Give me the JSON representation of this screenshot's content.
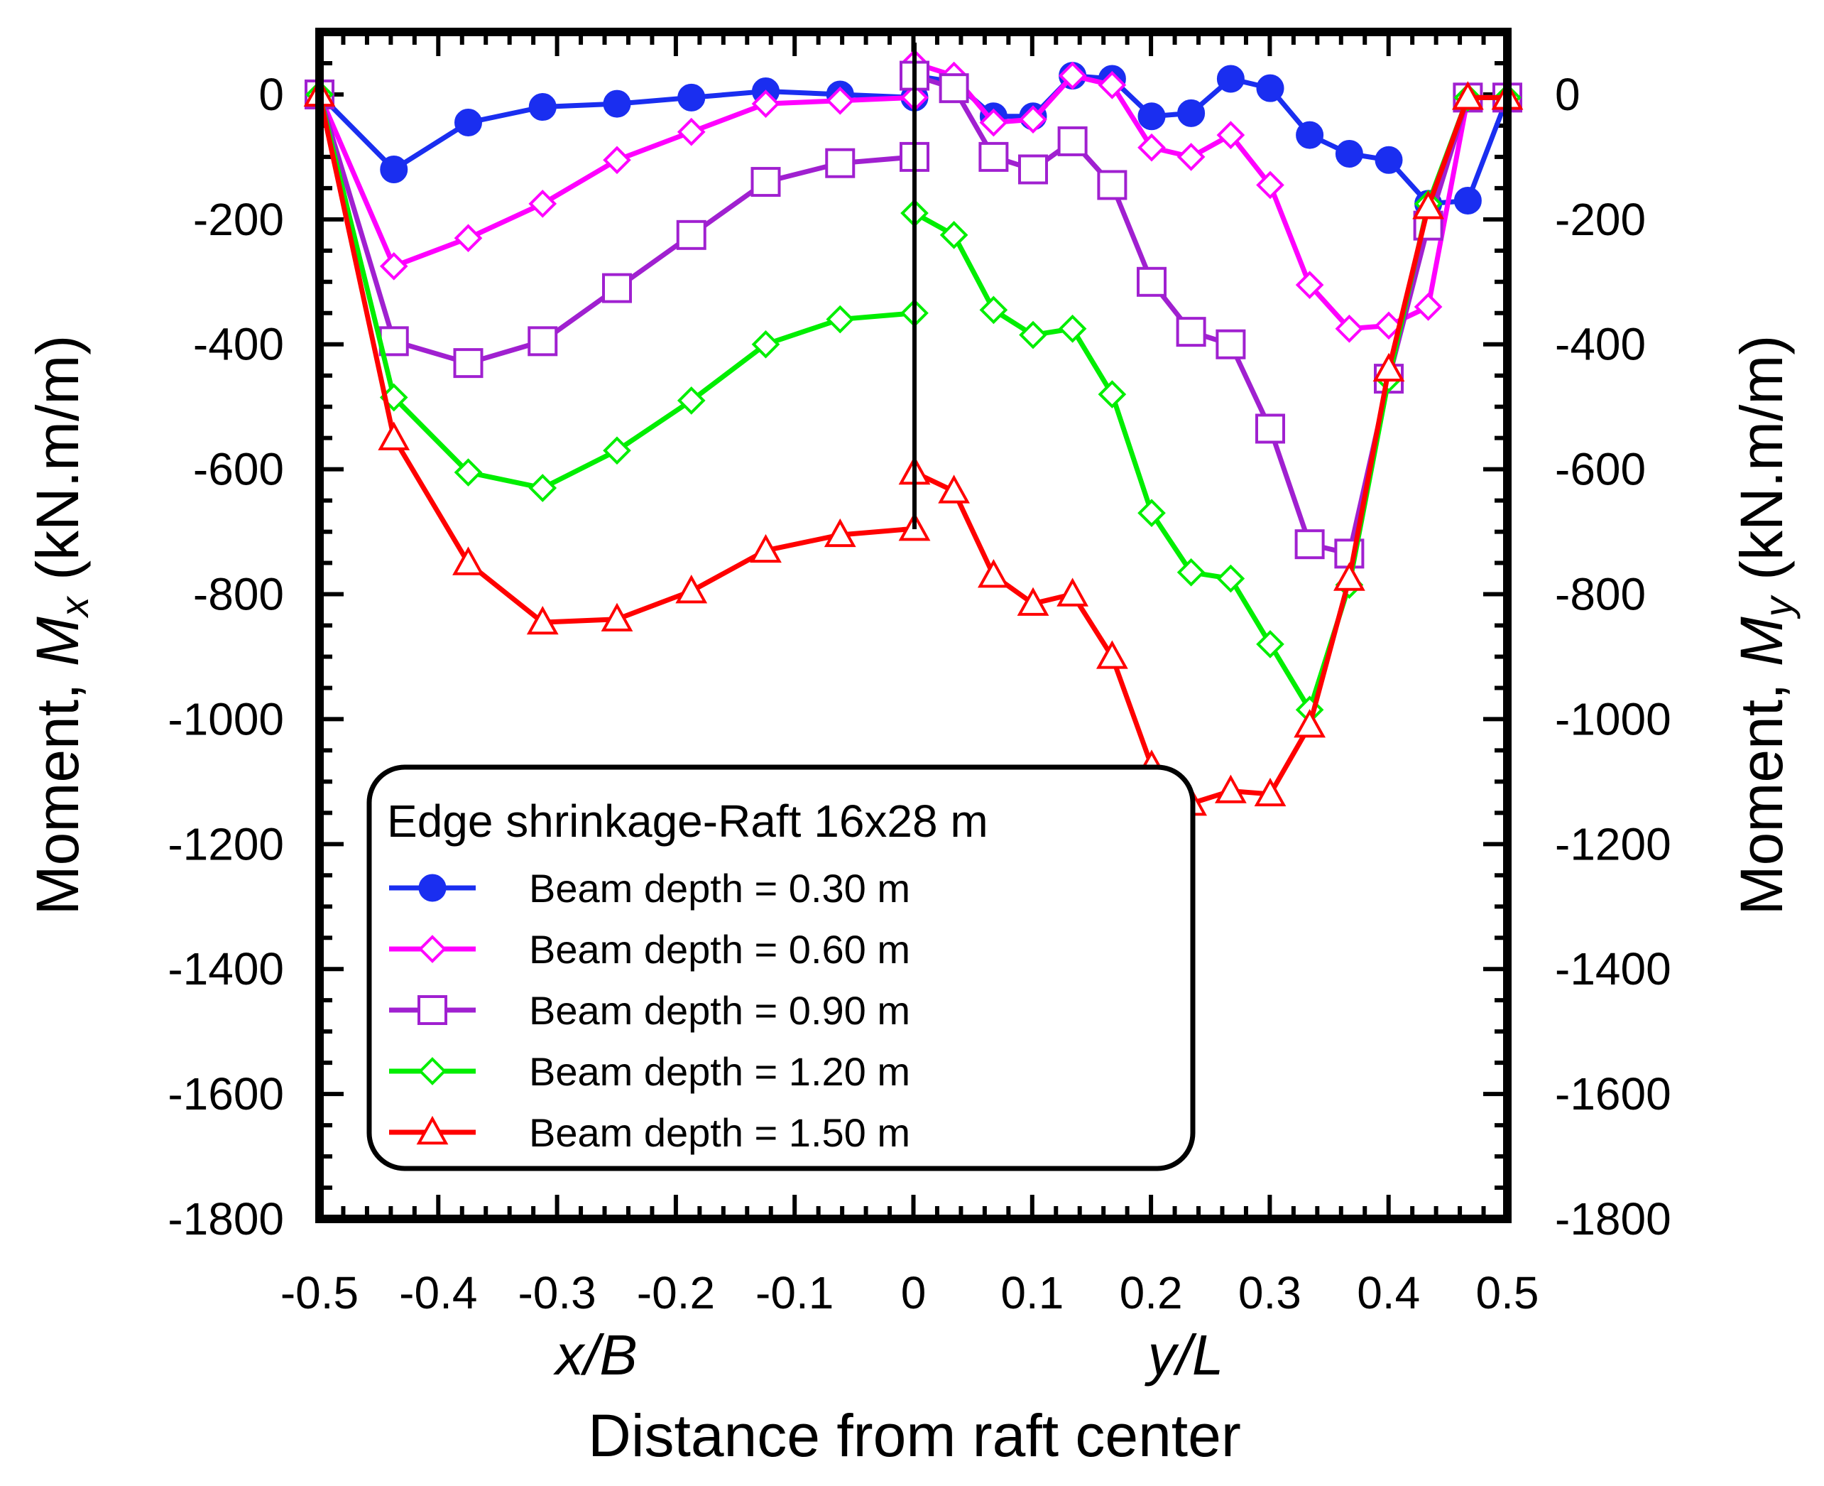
{
  "chart_data": {
    "type": "line",
    "title": "",
    "xlabel": "Distance from raft center",
    "sub_xlabels": {
      "left": "x/B",
      "right": "y/L"
    },
    "ylabel_left": {
      "prefix": "Moment, ",
      "sym": "M",
      "sub": "x",
      "suffix": " (kN.m/m)"
    },
    "ylabel_right": {
      "prefix": "Moment, ",
      "sym": "M",
      "sub": "y",
      "suffix": " (kN.m/m)"
    },
    "xlim_left": [
      -0.5,
      0
    ],
    "xlim_right": [
      0,
      0.5
    ],
    "ylim": [
      -1800,
      100
    ],
    "xtick_labels": [
      "-0.5",
      "-0.4",
      "-0.3",
      "-0.2",
      "-0.1",
      "0",
      "0.1",
      "0.2",
      "0.3",
      "0.4",
      "0.5"
    ],
    "ytick_values": [
      0,
      -200,
      -400,
      -600,
      -800,
      -1000,
      -1200,
      -1400,
      -1600,
      -1800
    ],
    "ytick_labels": [
      "0",
      "-200",
      "-400",
      "-600",
      "-800",
      "-1000",
      "-1200",
      "-1400",
      "-1600",
      "-1800"
    ],
    "legend": {
      "title": "Edge shrinkage-Raft 16x28 m",
      "position": "bottom-left"
    },
    "x_left": [
      -0.5,
      -0.4375,
      -0.375,
      -0.3125,
      -0.25,
      -0.1875,
      -0.125,
      -0.0625,
      0
    ],
    "x_right": [
      0,
      0.0333,
      0.0667,
      0.1,
      0.1333,
      0.1667,
      0.2,
      0.2333,
      0.2667,
      0.3,
      0.3333,
      0.3667,
      0.4,
      0.4333,
      0.4667,
      0.5
    ],
    "series": [
      {
        "name": "Beam depth = 0.30 m",
        "color": "#1a2ef0",
        "marker": "circle-filled",
        "left": [
          0,
          -120,
          -45,
          -20,
          -15,
          -5,
          5,
          0,
          -5
        ],
        "right": [
          30,
          20,
          -35,
          -35,
          30,
          25,
          -35,
          -30,
          25,
          10,
          -65,
          -95,
          -105,
          -175,
          -170,
          -5
        ]
      },
      {
        "name": "Beam depth = 0.60 m",
        "color": "#ff00ff",
        "marker": "diamond-open",
        "left": [
          0,
          -275,
          -230,
          -175,
          -105,
          -60,
          -15,
          -10,
          -5
        ],
        "right": [
          50,
          30,
          -45,
          -40,
          30,
          15,
          -85,
          -100,
          -65,
          -145,
          -305,
          -375,
          -370,
          -340,
          -5,
          -5
        ]
      },
      {
        "name": "Beam depth = 0.90 m",
        "color": "#a020d0",
        "marker": "square-open",
        "left": [
          0,
          -395,
          -430,
          -395,
          -310,
          -225,
          -140,
          -110,
          -100
        ],
        "right": [
          30,
          10,
          -100,
          -120,
          -75,
          -145,
          -300,
          -380,
          -400,
          -535,
          -720,
          -735,
          -455,
          -210,
          -5,
          -5
        ]
      },
      {
        "name": "Beam depth = 1.20 m",
        "color": "#00ee00",
        "marker": "diamond-open",
        "left": [
          0,
          -485,
          -605,
          -630,
          -570,
          -490,
          -400,
          -360,
          -350
        ],
        "right": [
          -190,
          -225,
          -345,
          -385,
          -375,
          -480,
          -670,
          -765,
          -775,
          -880,
          -985,
          -785,
          -455,
          -175,
          -5,
          -5
        ]
      },
      {
        "name": "Beam depth = 1.50 m",
        "color": "#ff0000",
        "marker": "triangle-open",
        "left": [
          0,
          -550,
          -750,
          -845,
          -840,
          -795,
          -730,
          -705,
          -695
        ],
        "right": [
          -605,
          -635,
          -770,
          -815,
          -800,
          -900,
          -1075,
          -1135,
          -1115,
          -1120,
          -1010,
          -775,
          -440,
          -180,
          -5,
          -5
        ]
      }
    ]
  }
}
